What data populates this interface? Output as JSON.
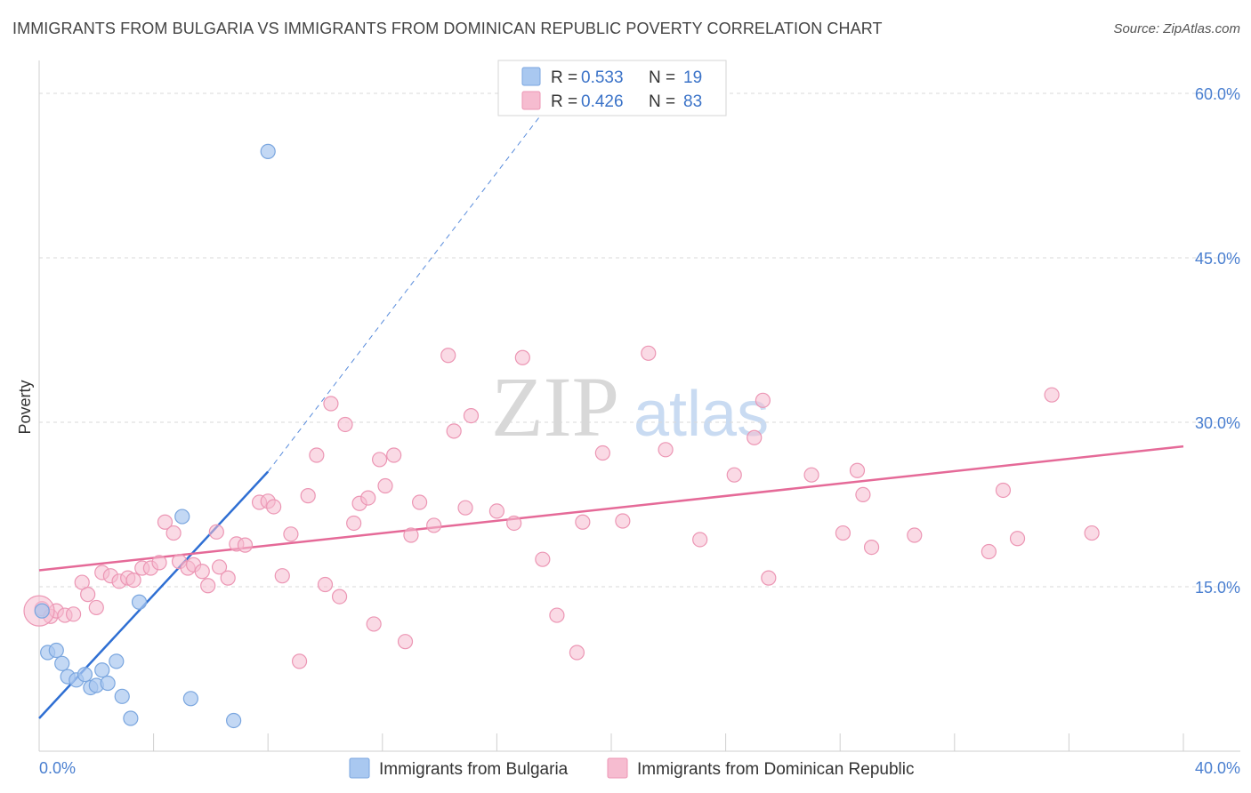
{
  "header": {
    "title": "IMMIGRANTS FROM BULGARIA VS IMMIGRANTS FROM DOMINICAN REPUBLIC POVERTY CORRELATION CHART",
    "source": "Source: ZipAtlas.com"
  },
  "watermark": {
    "zip": "ZIP",
    "atlas": "atlas"
  },
  "legend": {
    "rows": [
      {
        "r_label": "R =",
        "r_value": "0.533",
        "n_label": "N =",
        "n_value": "19"
      },
      {
        "r_label": "R =",
        "r_value": "0.426",
        "n_label": "N =",
        "n_value": "83"
      }
    ]
  },
  "bottom_legend": {
    "items": [
      {
        "label": "Immigrants from Bulgaria"
      },
      {
        "label": "Immigrants from Dominican Republic"
      }
    ]
  },
  "colors": {
    "bulgaria_fill": "#a9c8f0",
    "bulgaria_stroke": "#7aa6df",
    "bulgaria_line": "#2f6fd3",
    "dominican_fill": "#f6bcd0",
    "dominican_stroke": "#ec96b4",
    "dominican_line": "#e56a98",
    "grid": "#d9d9d9",
    "tick_label": "#4a7fd0"
  },
  "chart_data": {
    "type": "scatter",
    "title": "IMMIGRANTS FROM BULGARIA VS IMMIGRANTS FROM DOMINICAN REPUBLIC POVERTY CORRELATION CHART",
    "xlabel": "",
    "ylabel": "Poverty",
    "xlim": [
      0,
      40
    ],
    "ylim": [
      0,
      63
    ],
    "x_tick_labels": [
      "0.0%",
      "40.0%"
    ],
    "y_ticks": [
      15,
      30,
      45,
      60
    ],
    "y_tick_labels": [
      "15.0%",
      "30.0%",
      "45.0%",
      "60.0%"
    ],
    "grid": true,
    "legend_position": "top-center",
    "series": [
      {
        "name": "Immigrants from Bulgaria",
        "r": 0.533,
        "n": 19,
        "points": [
          [
            0.1,
            12.8
          ],
          [
            0.3,
            9.0
          ],
          [
            0.6,
            9.2
          ],
          [
            0.8,
            8.0
          ],
          [
            1.0,
            6.8
          ],
          [
            1.3,
            6.5
          ],
          [
            1.6,
            7.0
          ],
          [
            1.8,
            5.8
          ],
          [
            2.0,
            6.0
          ],
          [
            2.2,
            7.4
          ],
          [
            2.4,
            6.2
          ],
          [
            2.7,
            8.2
          ],
          [
            2.9,
            5.0
          ],
          [
            3.2,
            3.0
          ],
          [
            3.5,
            13.6
          ],
          [
            5.0,
            21.4
          ],
          [
            5.3,
            4.8
          ],
          [
            6.8,
            2.8
          ],
          [
            8.0,
            54.7
          ]
        ],
        "trend": {
          "x0": 0,
          "y0": 3.0,
          "x1": 8.0,
          "y1": 25.5,
          "dashed_to_x": 19.0,
          "dashed_to_y": 63
        }
      },
      {
        "name": "Immigrants from Dominican Republic",
        "r": 0.426,
        "n": 83,
        "points": [
          [
            0.1,
            13.0
          ],
          [
            0.4,
            12.3
          ],
          [
            0.6,
            12.8
          ],
          [
            0.9,
            12.4
          ],
          [
            1.2,
            12.5
          ],
          [
            1.5,
            15.4
          ],
          [
            1.7,
            14.3
          ],
          [
            2.0,
            13.1
          ],
          [
            2.2,
            16.3
          ],
          [
            2.5,
            16.0
          ],
          [
            2.8,
            15.5
          ],
          [
            3.1,
            15.8
          ],
          [
            3.3,
            15.6
          ],
          [
            3.6,
            16.7
          ],
          [
            3.9,
            16.7
          ],
          [
            4.2,
            17.2
          ],
          [
            4.4,
            20.9
          ],
          [
            4.7,
            19.9
          ],
          [
            4.9,
            17.3
          ],
          [
            5.2,
            16.7
          ],
          [
            5.4,
            17.0
          ],
          [
            5.7,
            16.4
          ],
          [
            5.9,
            15.1
          ],
          [
            6.2,
            20.0
          ],
          [
            6.3,
            16.8
          ],
          [
            6.6,
            15.8
          ],
          [
            6.9,
            18.9
          ],
          [
            7.2,
            18.8
          ],
          [
            7.7,
            22.7
          ],
          [
            8.0,
            22.8
          ],
          [
            8.2,
            22.3
          ],
          [
            8.5,
            16.0
          ],
          [
            8.8,
            19.8
          ],
          [
            9.1,
            8.2
          ],
          [
            9.4,
            23.3
          ],
          [
            9.7,
            27.0
          ],
          [
            10.0,
            15.2
          ],
          [
            10.2,
            31.7
          ],
          [
            10.5,
            14.1
          ],
          [
            10.7,
            29.8
          ],
          [
            11.0,
            20.8
          ],
          [
            11.2,
            22.6
          ],
          [
            11.5,
            23.1
          ],
          [
            11.7,
            11.6
          ],
          [
            11.9,
            26.6
          ],
          [
            12.1,
            24.2
          ],
          [
            12.4,
            27.0
          ],
          [
            12.8,
            10.0
          ],
          [
            13.0,
            19.7
          ],
          [
            13.3,
            22.7
          ],
          [
            13.8,
            20.6
          ],
          [
            14.3,
            36.1
          ],
          [
            14.5,
            29.2
          ],
          [
            14.9,
            22.2
          ],
          [
            15.1,
            30.6
          ],
          [
            16.0,
            21.9
          ],
          [
            16.6,
            20.8
          ],
          [
            16.9,
            35.9
          ],
          [
            17.6,
            17.5
          ],
          [
            18.1,
            12.4
          ],
          [
            18.8,
            9.0
          ],
          [
            19.0,
            20.9
          ],
          [
            19.7,
            27.2
          ],
          [
            20.4,
            21.0
          ],
          [
            21.3,
            36.3
          ],
          [
            21.9,
            27.5
          ],
          [
            23.1,
            19.3
          ],
          [
            24.3,
            25.2
          ],
          [
            25.0,
            28.6
          ],
          [
            25.3,
            32.0
          ],
          [
            25.5,
            15.8
          ],
          [
            27.0,
            25.2
          ],
          [
            28.1,
            19.9
          ],
          [
            28.6,
            25.6
          ],
          [
            28.8,
            23.4
          ],
          [
            29.1,
            18.6
          ],
          [
            30.6,
            19.7
          ],
          [
            33.2,
            18.2
          ],
          [
            33.7,
            23.8
          ],
          [
            34.2,
            19.4
          ],
          [
            35.4,
            32.5
          ],
          [
            36.8,
            19.9
          ],
          [
            0.0,
            12.8
          ]
        ],
        "trend": {
          "x0": 0,
          "y0": 16.5,
          "x1": 40,
          "y1": 27.8
        }
      }
    ]
  }
}
